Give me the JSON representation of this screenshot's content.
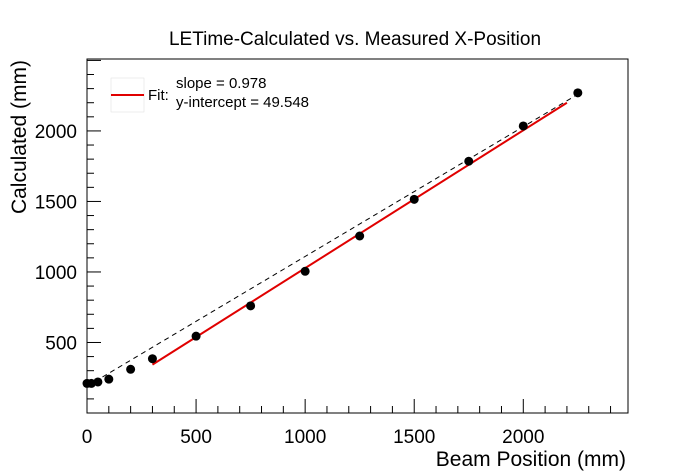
{
  "chart_data": {
    "type": "scatter",
    "title": "LETime-Calculated vs. Measured X-Position",
    "xlabel": "Beam Position (mm)",
    "ylabel": "Calculated (mm)",
    "xlim": [
      0,
      2480
    ],
    "ylim": [
      0,
      2510
    ],
    "x_ticks": [
      0,
      500,
      1000,
      1500,
      2000
    ],
    "y_ticks": [
      500,
      1000,
      1500,
      2000
    ],
    "grid": false,
    "legend_position": "top-left",
    "points": [
      {
        "x": 0,
        "y": 210
      },
      {
        "x": 20,
        "y": 210
      },
      {
        "x": 50,
        "y": 220
      },
      {
        "x": 100,
        "y": 240
      },
      {
        "x": 200,
        "y": 310
      },
      {
        "x": 300,
        "y": 385
      },
      {
        "x": 500,
        "y": 545
      },
      {
        "x": 750,
        "y": 760
      },
      {
        "x": 1000,
        "y": 1005
      },
      {
        "x": 1250,
        "y": 1255
      },
      {
        "x": 1500,
        "y": 1515
      },
      {
        "x": 1750,
        "y": 1785
      },
      {
        "x": 2000,
        "y": 2035
      },
      {
        "x": 2250,
        "y": 2270
      }
    ],
    "reference_line": {
      "x": [
        0,
        2250
      ],
      "y": [
        190,
        2260
      ],
      "style": "dashed",
      "color": "#000000"
    },
    "fit_line": {
      "x": [
        300,
        2200
      ],
      "y": [
        343,
        2200
      ],
      "color": "#e00000"
    },
    "legend": {
      "label": "Fit:",
      "slope_text": "slope = 0.978",
      "intercept_text": "y-intercept = 49.548"
    },
    "colors": {
      "points": "#000000",
      "fit": "#e00000",
      "axis": "#000000"
    }
  }
}
